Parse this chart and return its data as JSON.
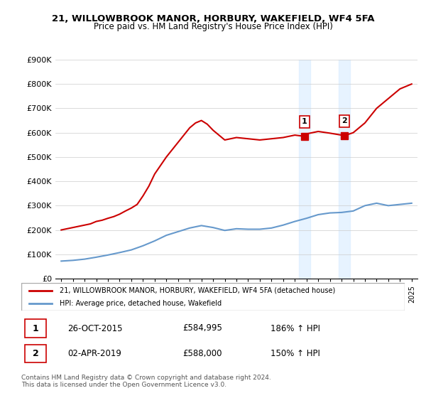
{
  "title": "21, WILLOWBROOK MANOR, HORBURY, WAKEFIELD, WF4 5FA",
  "subtitle": "Price paid vs. HM Land Registry's House Price Index (HPI)",
  "legend_property": "21, WILLOWBROOK MANOR, HORBURY, WAKEFIELD, WF4 5FA (detached house)",
  "legend_hpi": "HPI: Average price, detached house, Wakefield",
  "sale1_label": "1",
  "sale1_date": "26-OCT-2015",
  "sale1_price": "£584,995",
  "sale1_pct": "186% ↑ HPI",
  "sale1_year": 2015.82,
  "sale1_value": 584995,
  "sale2_label": "2",
  "sale2_date": "02-APR-2019",
  "sale2_price": "£588,000",
  "sale2_pct": "150% ↑ HPI",
  "sale2_year": 2019.25,
  "sale2_value": 588000,
  "footer": "Contains HM Land Registry data © Crown copyright and database right 2024.\nThis data is licensed under the Open Government Licence v3.0.",
  "property_color": "#cc0000",
  "hpi_color": "#6699cc",
  "shade_color": "#ddeeff",
  "marker_color": "#cc0000",
  "ylim": [
    0,
    900000
  ],
  "yticks": [
    0,
    100000,
    200000,
    300000,
    400000,
    500000,
    600000,
    700000,
    800000,
    900000
  ],
  "ytick_labels": [
    "£0",
    "£100K",
    "£200K",
    "£300K",
    "£400K",
    "£500K",
    "£600K",
    "£700K",
    "£800K",
    "£900K"
  ],
  "hpi_years": [
    1995,
    1996,
    1997,
    1998,
    1999,
    2000,
    2001,
    2002,
    2003,
    2004,
    2005,
    2006,
    2007,
    2008,
    2009,
    2010,
    2011,
    2012,
    2013,
    2014,
    2015,
    2016,
    2017,
    2018,
    2019,
    2020,
    2021,
    2022,
    2023,
    2024,
    2025
  ],
  "hpi_values": [
    72000,
    75000,
    80000,
    88000,
    97000,
    107000,
    118000,
    135000,
    155000,
    178000,
    193000,
    208000,
    218000,
    210000,
    198000,
    205000,
    203000,
    203000,
    208000,
    220000,
    235000,
    248000,
    263000,
    270000,
    272000,
    278000,
    300000,
    310000,
    300000,
    305000,
    310000
  ],
  "property_years": [
    1995,
    1995.5,
    1996,
    1996.5,
    1997,
    1997.5,
    1998,
    1998.5,
    1999,
    1999.5,
    2000,
    2000.5,
    2001,
    2001.5,
    2002,
    2002.5,
    2003,
    2004,
    2005,
    2006,
    2006.5,
    2007,
    2007.5,
    2008,
    2009,
    2010,
    2011,
    2012,
    2013,
    2014,
    2015,
    2015.82,
    2016,
    2017,
    2018,
    2019.25,
    2020,
    2021,
    2022,
    2023,
    2024,
    2025
  ],
  "property_values": [
    200000,
    205000,
    210000,
    215000,
    220000,
    225000,
    235000,
    240000,
    248000,
    255000,
    265000,
    278000,
    290000,
    305000,
    340000,
    380000,
    430000,
    500000,
    560000,
    620000,
    640000,
    650000,
    635000,
    610000,
    570000,
    580000,
    575000,
    570000,
    575000,
    580000,
    590000,
    584995,
    595000,
    605000,
    598000,
    588000,
    600000,
    640000,
    700000,
    740000,
    780000,
    800000
  ]
}
